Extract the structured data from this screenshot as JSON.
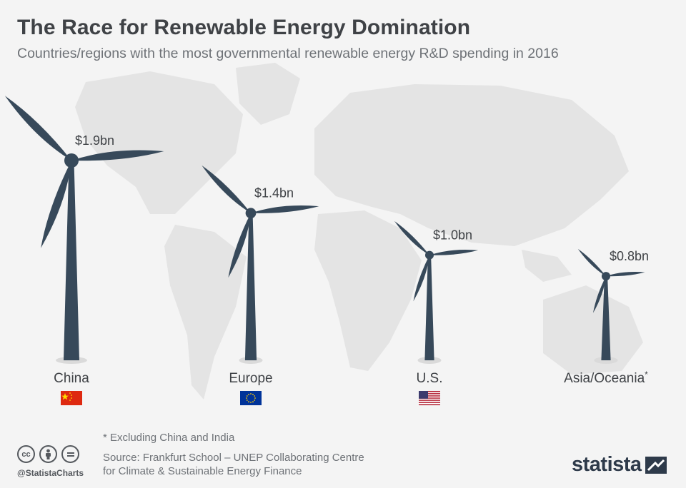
{
  "header": {
    "title": "The Race for Renewable Energy Domination",
    "subtitle": "Countries/regions with the most governmental renewable energy R&D spending in 2016"
  },
  "chart_data": {
    "type": "bar",
    "title": "The Race for Renewable Energy Domination",
    "subtitle": "Countries/regions with the most governmental renewable energy R&D spending in 2016",
    "categories": [
      "China",
      "Europe",
      "U.S.",
      "Asia/Oceania"
    ],
    "values": [
      1.9,
      1.4,
      1.0,
      0.8
    ],
    "value_labels": [
      "$1.9bn",
      "$1.4bn",
      "$1.0bn",
      "$0.8bn"
    ],
    "category_marks": [
      "",
      "",
      "",
      "*"
    ],
    "flags": [
      "china-flag",
      "eu-flag",
      "us-flag",
      ""
    ],
    "encoding": "wind turbine height",
    "colors": {
      "turbine": "#37495a",
      "base": "#dadada",
      "map": "#e3e3e3"
    }
  },
  "footer": {
    "footnote": "* Excluding China and India",
    "source_line1": "Source: Frankfurt School – UNEP Collaborating Centre",
    "source_line2": "for Climate & Sustainable Energy Finance",
    "handle": "@StatistaCharts",
    "brand": "statista",
    "cc_icons": [
      "cc-icon",
      "by-icon",
      "nd-icon"
    ]
  }
}
